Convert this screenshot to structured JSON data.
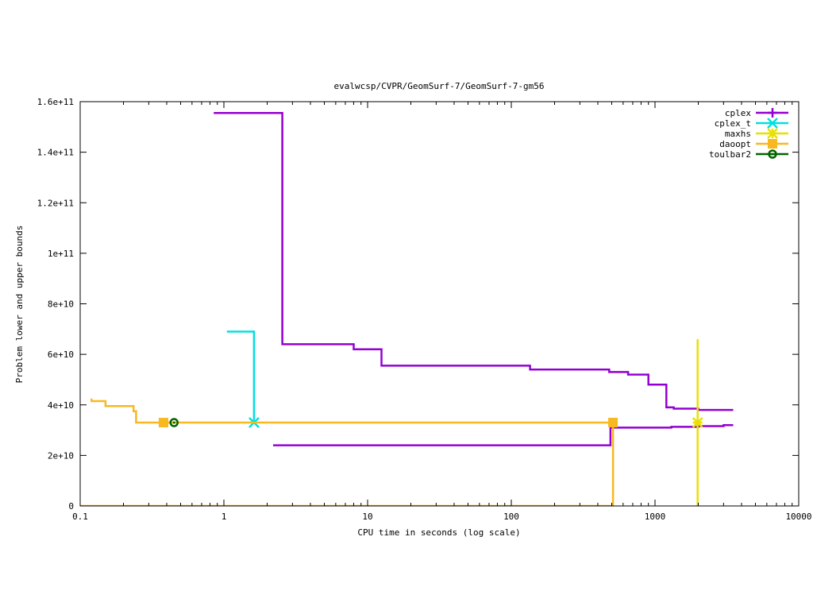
{
  "chart_data": {
    "type": "line",
    "title": "evalwcsp/CVPR/GeomSurf-7/GeomSurf-7-gm56",
    "xlabel": "CPU time in seconds (log scale)",
    "ylabel": "Problem lower and upper bounds",
    "xscale": "log",
    "xlim": [
      0.1,
      10000
    ],
    "ylim": [
      0,
      160000000000
    ],
    "grid": false,
    "legend_position": "top-right",
    "x_ticks": [
      {
        "value": 0.1,
        "label": "0.1"
      },
      {
        "value": 1,
        "label": "1"
      },
      {
        "value": 10,
        "label": "10"
      },
      {
        "value": 100,
        "label": "100"
      },
      {
        "value": 1000,
        "label": "1000"
      },
      {
        "value": 10000,
        "label": "10000"
      }
    ],
    "y_ticks": [
      {
        "value": 0,
        "label": "0"
      },
      {
        "value": 20000000000,
        "label": "2e+10"
      },
      {
        "value": 40000000000,
        "label": "4e+10"
      },
      {
        "value": 60000000000,
        "label": "6e+10"
      },
      {
        "value": 80000000000,
        "label": "8e+10"
      },
      {
        "value": 100000000000,
        "label": "1e+11"
      },
      {
        "value": 120000000000,
        "label": "1.2e+11"
      },
      {
        "value": 140000000000,
        "label": "1.4e+11"
      },
      {
        "value": 160000000000,
        "label": "1.6e+11"
      }
    ],
    "series": [
      {
        "name": "cplex",
        "color": "#9400d3",
        "marker": "plus",
        "lines": [
          [
            [
              0.85,
              155500000000
            ],
            [
              2.55,
              155500000000
            ],
            [
              2.55,
              64000000000
            ],
            [
              8.0,
              64000000000
            ],
            [
              8.0,
              62000000000
            ],
            [
              12.5,
              62000000000
            ],
            [
              12.5,
              55500000000
            ],
            [
              135,
              55500000000
            ],
            [
              135,
              54000000000
            ],
            [
              480,
              54000000000
            ],
            [
              480,
              53000000000
            ],
            [
              650,
              53000000000
            ],
            [
              650,
              52000000000
            ],
            [
              900,
              52000000000
            ],
            [
              900,
              48000000000
            ],
            [
              1200,
              48000000000
            ],
            [
              1200,
              39000000000
            ],
            [
              1350,
              39000000000
            ],
            [
              1350,
              38500000000
            ],
            [
              2000,
              38500000000
            ],
            [
              2000,
              38000000000
            ],
            [
              3500,
              38000000000
            ]
          ],
          [
            [
              2.2,
              24000000000
            ],
            [
              490,
              24000000000
            ],
            [
              490,
              31000000000
            ],
            [
              1300,
              31000000000
            ],
            [
              1300,
              31300000000
            ],
            [
              2000,
              31300000000
            ],
            [
              2000,
              31600000000
            ],
            [
              3000,
              31600000000
            ],
            [
              3000,
              32000000000
            ],
            [
              3500,
              32000000000
            ]
          ]
        ],
        "markers": []
      },
      {
        "name": "cplex_t",
        "color": "#00e0e0",
        "marker": "x",
        "lines": [
          [
            [
              1.05,
              69000000000
            ],
            [
              1.62,
              69000000000
            ],
            [
              1.62,
              33000000000
            ]
          ]
        ],
        "markers": [
          [
            1.62,
            33000000000
          ]
        ]
      },
      {
        "name": "maxhs",
        "color": "#e8e000",
        "marker": "star",
        "lines": [
          [
            [
              1980,
              66000000000
            ],
            [
              1980,
              0
            ]
          ]
        ],
        "markers": [
          [
            1980,
            33000000000
          ]
        ]
      },
      {
        "name": "daoopt",
        "color": "#f8b820",
        "marker": "square",
        "lines": [
          [
            [
              0.12,
              42500000000
            ],
            [
              0.12,
              41500000000
            ],
            [
              0.15,
              41500000000
            ],
            [
              0.15,
              39500000000
            ],
            [
              0.235,
              39500000000
            ],
            [
              0.235,
              37500000000
            ],
            [
              0.245,
              37500000000
            ],
            [
              0.245,
              33000000000
            ],
            [
              510,
              33000000000
            ],
            [
              510,
              0
            ],
            [
              0.1,
              0
            ]
          ]
        ],
        "markers": [
          [
            0.38,
            33000000000
          ],
          [
            510,
            33000000000
          ]
        ]
      },
      {
        "name": "toulbar2",
        "color": "#006400",
        "marker": "circle",
        "lines": [],
        "markers": [
          [
            0.45,
            33000000000
          ]
        ]
      }
    ]
  }
}
